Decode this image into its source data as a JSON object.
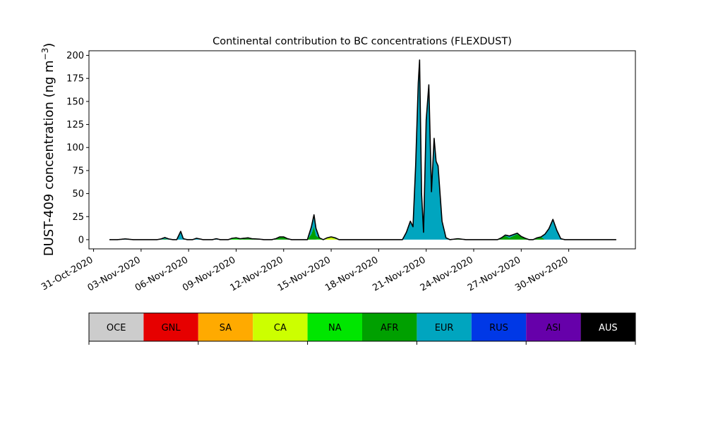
{
  "chart_data": {
    "type": "area",
    "stacked": true,
    "title": "Continental contribution to BC concentrations (FLEXDUST)",
    "xlabel": "",
    "ylabel": "DUST-409 concentration (ng m",
    "ylabel_superscript": "−3",
    "ylabel_suffix": ")",
    "x_axis_type": "date",
    "xlim": [
      "2020-10-30T17:00",
      "2020-12-04T05:00"
    ],
    "ylim": [
      -10,
      205
    ],
    "x_ticks": [
      "2020-10-31",
      "2020-11-03",
      "2020-11-06",
      "2020-11-09",
      "2020-11-12",
      "2020-11-15",
      "2020-11-18",
      "2020-11-21",
      "2020-11-24",
      "2020-11-27",
      "2020-11-30"
    ],
    "x_tick_labels": [
      "31-Oct-2020",
      "03-Nov-2020",
      "06-Nov-2020",
      "09-Nov-2020",
      "12-Nov-2020",
      "15-Nov-2020",
      "18-Nov-2020",
      "21-Nov-2020",
      "24-Nov-2020",
      "27-Nov-2020",
      "30-Nov-2020"
    ],
    "y_ticks": [
      0,
      25,
      50,
      75,
      100,
      125,
      150,
      175,
      200
    ],
    "y_tick_labels": [
      "0",
      "25",
      "50",
      "75",
      "100",
      "125",
      "150",
      "175",
      "200"
    ],
    "grid": false,
    "legend": {
      "placement": "bottom",
      "entries": [
        {
          "label": "OCE",
          "color": "#cccccc",
          "text_color": "#000000"
        },
        {
          "label": "GNL",
          "color": "#e60000",
          "text_color": "#000000"
        },
        {
          "label": "SA",
          "color": "#ffaa00",
          "text_color": "#000000"
        },
        {
          "label": "CA",
          "color": "#ccff00",
          "text_color": "#000000"
        },
        {
          "label": "NA",
          "color": "#00e600",
          "text_color": "#000000"
        },
        {
          "label": "AFR",
          "color": "#00a000",
          "text_color": "#000000"
        },
        {
          "label": "EUR",
          "color": "#00a5bf",
          "text_color": "#000000"
        },
        {
          "label": "RUS",
          "color": "#0038e6",
          "text_color": "#000000"
        },
        {
          "label": "ASI",
          "color": "#6600aa",
          "text_color": "#000000"
        },
        {
          "label": "AUS",
          "color": "#000000",
          "text_color": "#ffffff"
        }
      ]
    },
    "total_line_color": "#000000",
    "series": [
      {
        "name": "NA",
        "color": "#00e600",
        "points": [
          [
            "2020-11-08T12:00",
            0
          ],
          [
            "2020-11-08T18:00",
            1.5
          ],
          [
            "2020-11-09T00:00",
            2
          ],
          [
            "2020-11-09T06:00",
            1
          ],
          [
            "2020-11-09T12:00",
            0
          ],
          [
            "2020-11-14T00:00",
            0
          ],
          [
            "2020-11-14T06:00",
            1
          ],
          [
            "2020-11-14T12:00",
            0
          ]
        ]
      },
      {
        "name": "AFR",
        "color": "#00a000",
        "points": [
          [
            "2020-11-04T06:00",
            0
          ],
          [
            "2020-11-04T12:00",
            0.8
          ],
          [
            "2020-11-04T18:00",
            0
          ],
          [
            "2020-11-09T06:00",
            0
          ],
          [
            "2020-11-09T12:00",
            1.5
          ],
          [
            "2020-11-09T18:00",
            2
          ],
          [
            "2020-11-10T00:00",
            1
          ],
          [
            "2020-11-10T06:00",
            0.8
          ],
          [
            "2020-11-10T12:00",
            0.5
          ],
          [
            "2020-11-10T18:00",
            0
          ],
          [
            "2020-11-11T06:00",
            0
          ],
          [
            "2020-11-11T12:00",
            1
          ],
          [
            "2020-11-11T18:00",
            3
          ],
          [
            "2020-11-12T00:00",
            3
          ],
          [
            "2020-11-12T06:00",
            1
          ],
          [
            "2020-11-12T12:00",
            0
          ],
          [
            "2020-11-13T12:00",
            0
          ],
          [
            "2020-11-13T18:00",
            6
          ],
          [
            "2020-11-13T22:00",
            14
          ],
          [
            "2020-11-14T01:00",
            4
          ],
          [
            "2020-11-14T06:00",
            1
          ],
          [
            "2020-11-14T12:00",
            0
          ],
          [
            "2020-11-22T12:00",
            0
          ],
          [
            "2020-11-23T00:00",
            1
          ],
          [
            "2020-11-23T12:00",
            0
          ],
          [
            "2020-11-25T12:00",
            0
          ],
          [
            "2020-11-25T18:00",
            2
          ],
          [
            "2020-11-26T00:00",
            4
          ],
          [
            "2020-11-26T06:00",
            2
          ],
          [
            "2020-11-26T12:00",
            4
          ],
          [
            "2020-11-26T18:00",
            6
          ],
          [
            "2020-11-27T00:00",
            3
          ],
          [
            "2020-11-27T06:00",
            1.5
          ],
          [
            "2020-11-27T12:00",
            0
          ],
          [
            "2020-11-27T18:00",
            0
          ],
          [
            "2020-11-28T00:00",
            2
          ],
          [
            "2020-11-28T06:00",
            3
          ],
          [
            "2020-11-28T12:00",
            0
          ]
        ]
      },
      {
        "name": "CA",
        "color": "#ccff00",
        "points": [
          [
            "2020-11-14T12:00",
            0
          ],
          [
            "2020-11-14T18:00",
            2
          ],
          [
            "2020-11-15T00:00",
            3
          ],
          [
            "2020-11-15T06:00",
            1
          ],
          [
            "2020-11-15T12:00",
            0
          ]
        ]
      },
      {
        "name": "EUR",
        "color": "#00a5bf",
        "points": [
          [
            "2020-11-01T12:00",
            0
          ],
          [
            "2020-11-02T00:00",
            0.8
          ],
          [
            "2020-11-02T12:00",
            0
          ],
          [
            "2020-11-04T00:00",
            0
          ],
          [
            "2020-11-04T12:00",
            1.5
          ],
          [
            "2020-11-05T00:00",
            0
          ],
          [
            "2020-11-05T06:00",
            0
          ],
          [
            "2020-11-05T12:00",
            9
          ],
          [
            "2020-11-05T16:00",
            1
          ],
          [
            "2020-11-05T22:00",
            0
          ],
          [
            "2020-11-06T06:00",
            0
          ],
          [
            "2020-11-06T12:00",
            1.5
          ],
          [
            "2020-11-06T22:00",
            0
          ],
          [
            "2020-11-07T12:00",
            0
          ],
          [
            "2020-11-07T18:00",
            1
          ],
          [
            "2020-11-08T00:00",
            0
          ],
          [
            "2020-11-13T12:00",
            0
          ],
          [
            "2020-11-13T22:00",
            13
          ],
          [
            "2020-11-14T06:00",
            0
          ],
          [
            "2020-11-15T00:00",
            0
          ],
          [
            "2020-11-15T06:00",
            1
          ],
          [
            "2020-11-15T12:00",
            0
          ],
          [
            "2020-11-19T12:00",
            0
          ],
          [
            "2020-11-19T18:00",
            8
          ],
          [
            "2020-11-20T00:00",
            20
          ],
          [
            "2020-11-20T04:00",
            14
          ],
          [
            "2020-11-20T08:00",
            80
          ],
          [
            "2020-11-20T12:00",
            170
          ],
          [
            "2020-11-20T14:00",
            195
          ],
          [
            "2020-11-20T17:00",
            50
          ],
          [
            "2020-11-20T20:00",
            8
          ],
          [
            "2020-11-21T00:00",
            130
          ],
          [
            "2020-11-21T04:00",
            168
          ],
          [
            "2020-11-21T08:00",
            52
          ],
          [
            "2020-11-21T12:00",
            110
          ],
          [
            "2020-11-21T15:00",
            85
          ],
          [
            "2020-11-21T18:00",
            80
          ],
          [
            "2020-11-22T00:00",
            20
          ],
          [
            "2020-11-22T06:00",
            2
          ],
          [
            "2020-11-22T12:00",
            0
          ],
          [
            "2020-11-25T18:00",
            0
          ],
          [
            "2020-11-26T06:00",
            2
          ],
          [
            "2020-11-26T18:00",
            1
          ],
          [
            "2020-11-27T06:00",
            0
          ],
          [
            "2020-11-28T06:00",
            0
          ],
          [
            "2020-11-28T18:00",
            12
          ],
          [
            "2020-11-29T00:00",
            22
          ],
          [
            "2020-11-29T06:00",
            10
          ],
          [
            "2020-11-29T12:00",
            1
          ],
          [
            "2020-11-29T18:00",
            0
          ]
        ]
      }
    ]
  }
}
